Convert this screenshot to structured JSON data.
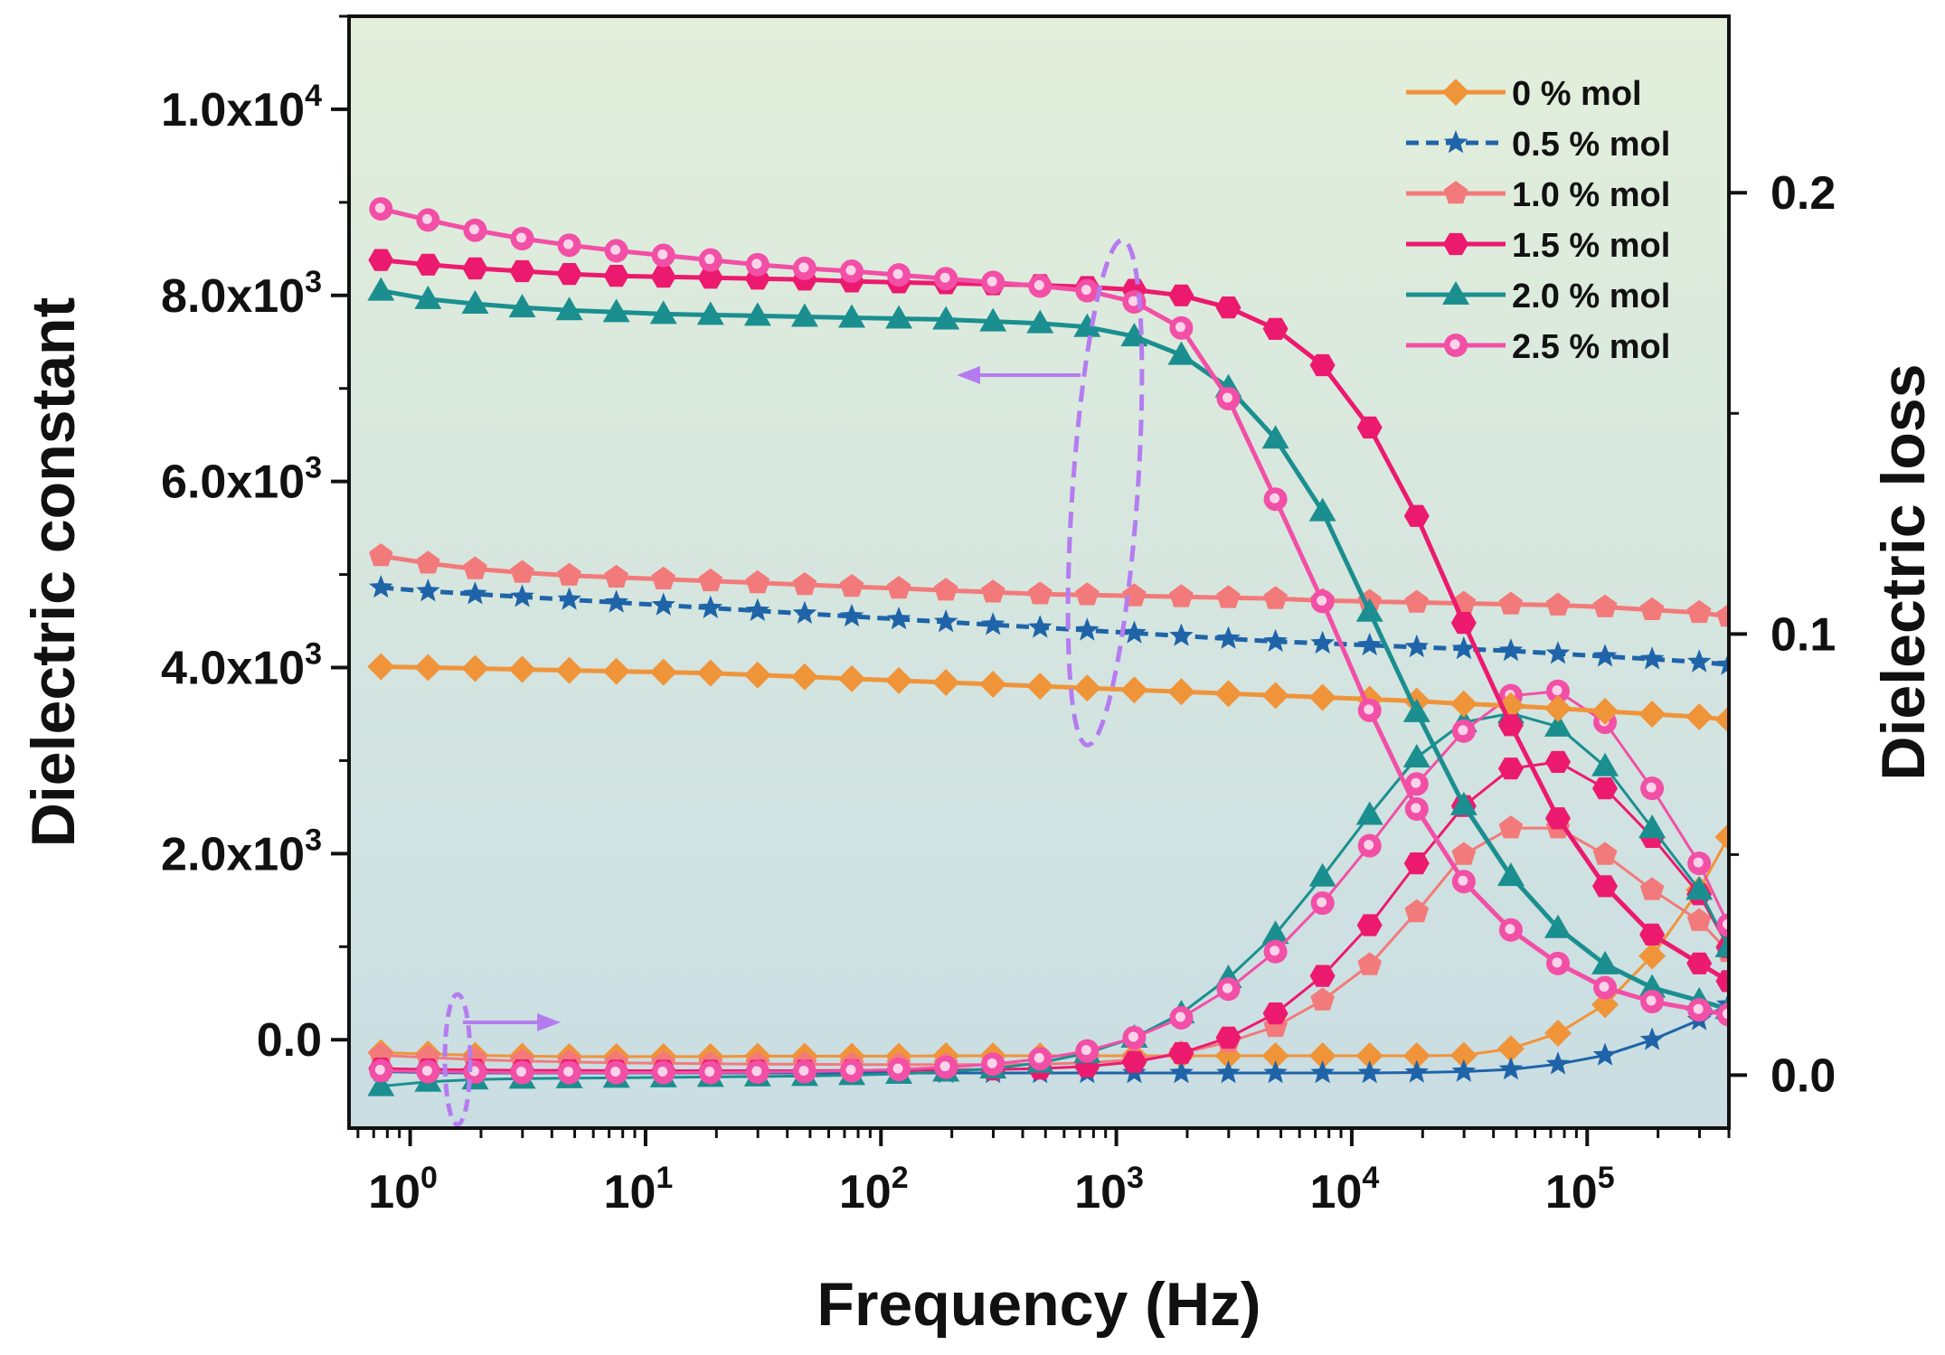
{
  "chart_data": {
    "type": "line",
    "title": "",
    "xlabel": "Frequency (Hz)",
    "ylabel": "Dielectric constant",
    "y2label": "Dielectric loss",
    "xscale": "log",
    "xlim": [
      0.55,
      400000
    ],
    "ylim": [
      -950,
      11000
    ],
    "y2lim": [
      -0.012,
      0.24
    ],
    "x_ticks": [
      {
        "exp": 0,
        "base": "10",
        "sup": "0"
      },
      {
        "exp": 1,
        "base": "10",
        "sup": "1"
      },
      {
        "exp": 2,
        "base": "10",
        "sup": "2"
      },
      {
        "exp": 3,
        "base": "10",
        "sup": "3"
      },
      {
        "exp": 4,
        "base": "10",
        "sup": "4"
      },
      {
        "exp": 5,
        "base": "10",
        "sup": "5"
      }
    ],
    "y_ticks": [
      {
        "value": 0,
        "base": "0.0",
        "sup": ""
      },
      {
        "value": 2000,
        "base": "2.0x10",
        "sup": "3"
      },
      {
        "value": 4000,
        "base": "4.0x10",
        "sup": "3"
      },
      {
        "value": 6000,
        "base": "6.0x10",
        "sup": "3"
      },
      {
        "value": 8000,
        "base": "8.0x10",
        "sup": "3"
      },
      {
        "value": 10000,
        "base": "1.0x10",
        "sup": "4"
      }
    ],
    "y2_ticks": [
      {
        "value": 0.0,
        "label": "0.0"
      },
      {
        "value": 0.1,
        "label": "0.1"
      },
      {
        "value": 0.2,
        "label": "0.2"
      }
    ],
    "log_x": [
      -0.124,
      0.076,
      0.276,
      0.476,
      0.676,
      0.876,
      1.076,
      1.276,
      1.476,
      1.676,
      1.876,
      2.076,
      2.276,
      2.476,
      2.676,
      2.876,
      3.076,
      3.276,
      3.476,
      3.676,
      3.876,
      4.076,
      4.276,
      4.476,
      4.676,
      4.876,
      5.076,
      5.276,
      5.476,
      5.6
    ],
    "annotations": [
      {
        "type": "ellipse",
        "meaning": "dielectric constant curves",
        "arrow": "left",
        "color": "#b57cf0"
      },
      {
        "type": "ellipse",
        "meaning": "dielectric loss curves",
        "arrow": "right",
        "color": "#b57cf0"
      }
    ],
    "background": {
      "top": "#e3efdb",
      "bottom": "#c9dde3"
    },
    "series": [
      {
        "name": "0 % mol",
        "color": "#f0943a",
        "marker": "diamond",
        "style": "solid",
        "axis": "left",
        "values": [
          4010,
          4000,
          3990,
          3980,
          3970,
          3960,
          3950,
          3940,
          3920,
          3900,
          3880,
          3860,
          3840,
          3820,
          3800,
          3780,
          3760,
          3740,
          3720,
          3700,
          3680,
          3660,
          3640,
          3610,
          3590,
          3560,
          3530,
          3500,
          3470,
          3440
        ]
      },
      {
        "name": "0.5 % mol",
        "color": "#1f64a8",
        "marker": "star",
        "style": "dashed",
        "axis": "left",
        "values": [
          4860,
          4820,
          4790,
          4760,
          4730,
          4700,
          4670,
          4640,
          4610,
          4580,
          4550,
          4520,
          4490,
          4460,
          4430,
          4400,
          4370,
          4340,
          4310,
          4280,
          4260,
          4240,
          4220,
          4200,
          4180,
          4150,
          4120,
          4090,
          4060,
          4030
        ]
      },
      {
        "name": "1.0 % mol",
        "color": "#f37a7a",
        "marker": "pentagon",
        "style": "solid",
        "axis": "left",
        "values": [
          5200,
          5120,
          5060,
          5020,
          4990,
          4970,
          4950,
          4930,
          4910,
          4890,
          4870,
          4850,
          4830,
          4810,
          4790,
          4780,
          4770,
          4760,
          4750,
          4740,
          4720,
          4710,
          4700,
          4690,
          4680,
          4670,
          4650,
          4620,
          4590,
          4550
        ]
      },
      {
        "name": "1.5 % mol",
        "color": "#ec1a6e",
        "marker": "hexagon",
        "style": "solid",
        "axis": "left",
        "values": [
          8380,
          8330,
          8290,
          8260,
          8230,
          8210,
          8200,
          8190,
          8180,
          8170,
          8150,
          8140,
          8130,
          8120,
          8110,
          8090,
          8060,
          8000,
          7870,
          7640,
          7250,
          6580,
          5630,
          4480,
          3380,
          2380,
          1650,
          1130,
          820,
          630
        ]
      },
      {
        "name": "2.0 % mol",
        "color": "#1b8f8f",
        "marker": "triangle",
        "style": "solid",
        "axis": "left",
        "values": [
          8050,
          7960,
          7910,
          7870,
          7840,
          7820,
          7800,
          7790,
          7780,
          7770,
          7760,
          7750,
          7740,
          7720,
          7700,
          7660,
          7560,
          7360,
          7010,
          6460,
          5680,
          4600,
          3520,
          2520,
          1760,
          1200,
          810,
          560,
          420,
          330
        ]
      },
      {
        "name": "2.5 % mol",
        "color": "#f24fa6",
        "marker": "circle",
        "style": "solid",
        "axis": "left",
        "values": [
          8930,
          8810,
          8700,
          8610,
          8540,
          8480,
          8430,
          8380,
          8330,
          8290,
          8260,
          8220,
          8180,
          8140,
          8100,
          8050,
          7930,
          7650,
          6890,
          5810,
          4710,
          3540,
          2480,
          1700,
          1180,
          820,
          560,
          410,
          320,
          270
        ]
      },
      {
        "name": "0 % mol",
        "color": "#f0943a",
        "marker": "diamond",
        "style": "solid",
        "axis": "right",
        "legend": false,
        "values": [
          0.0051,
          0.0048,
          0.0045,
          0.0043,
          0.0042,
          0.0042,
          0.0042,
          0.0042,
          0.0043,
          0.0043,
          0.0043,
          0.0043,
          0.0044,
          0.0044,
          0.0044,
          0.0044,
          0.0044,
          0.0044,
          0.0044,
          0.0044,
          0.0044,
          0.0044,
          0.0044,
          0.0045,
          0.006,
          0.0095,
          0.016,
          0.027,
          0.042,
          0.054
        ]
      },
      {
        "name": "0.5 % mol",
        "color": "#1f64a8",
        "marker": "star",
        "style": "solid",
        "axis": "right",
        "legend": false,
        "values": [
          0.0008,
          0.0006,
          0.0005,
          0.0005,
          0.0005,
          0.0005,
          0.0005,
          0.0005,
          0.0005,
          0.0005,
          0.0005,
          0.0005,
          0.0005,
          0.0005,
          0.0005,
          0.0005,
          0.0005,
          0.0005,
          0.0005,
          0.0005,
          0.0005,
          0.0005,
          0.0006,
          0.0008,
          0.0013,
          0.0025,
          0.0045,
          0.008,
          0.0125,
          0.016
        ]
      },
      {
        "name": "1.0 % mol",
        "color": "#f37a7a",
        "marker": "pentagon",
        "style": "solid",
        "axis": "right",
        "legend": false,
        "values": [
          0.0045,
          0.004,
          0.0035,
          0.0032,
          0.003,
          0.0028,
          0.0027,
          0.0026,
          0.0025,
          0.0025,
          0.0024,
          0.0024,
          0.0024,
          0.0024,
          0.0025,
          0.0028,
          0.0035,
          0.005,
          0.0075,
          0.011,
          0.017,
          0.025,
          0.037,
          0.05,
          0.056,
          0.056,
          0.05,
          0.042,
          0.035,
          0.028
        ]
      },
      {
        "name": "1.5 % mol",
        "color": "#ec1a6e",
        "marker": "hexagon",
        "style": "solid",
        "axis": "right",
        "legend": false,
        "values": [
          0.0015,
          0.0013,
          0.0012,
          0.0011,
          0.0011,
          0.001,
          0.001,
          0.001,
          0.001,
          0.001,
          0.0011,
          0.0011,
          0.0012,
          0.0013,
          0.0015,
          0.002,
          0.003,
          0.005,
          0.0085,
          0.014,
          0.0225,
          0.034,
          0.048,
          0.061,
          0.0695,
          0.071,
          0.065,
          0.054,
          0.041,
          0.029
        ]
      },
      {
        "name": "2.0 % mol",
        "color": "#1b8f8f",
        "marker": "triangle",
        "style": "solid",
        "axis": "right",
        "legend": false,
        "values": [
          -0.0025,
          -0.0015,
          -0.001,
          -0.0008,
          -0.0007,
          -0.0006,
          -0.0005,
          -0.0004,
          -0.0003,
          -0.0002,
          0.0,
          0.0003,
          0.0008,
          0.0015,
          0.0028,
          0.005,
          0.0085,
          0.014,
          0.022,
          0.032,
          0.045,
          0.059,
          0.072,
          0.08,
          0.082,
          0.079,
          0.07,
          0.056,
          0.042,
          0.029
        ]
      },
      {
        "name": "2.5 % mol",
        "color": "#f24fa6",
        "marker": "circle",
        "style": "solid",
        "axis": "right",
        "legend": false,
        "values": [
          0.001,
          0.0008,
          0.0007,
          0.0006,
          0.0006,
          0.0006,
          0.0006,
          0.0006,
          0.0007,
          0.0008,
          0.001,
          0.0013,
          0.0018,
          0.0025,
          0.0037,
          0.0055,
          0.0085,
          0.013,
          0.0195,
          0.028,
          0.039,
          0.052,
          0.066,
          0.078,
          0.086,
          0.087,
          0.08,
          0.065,
          0.048,
          0.034
        ]
      }
    ]
  }
}
